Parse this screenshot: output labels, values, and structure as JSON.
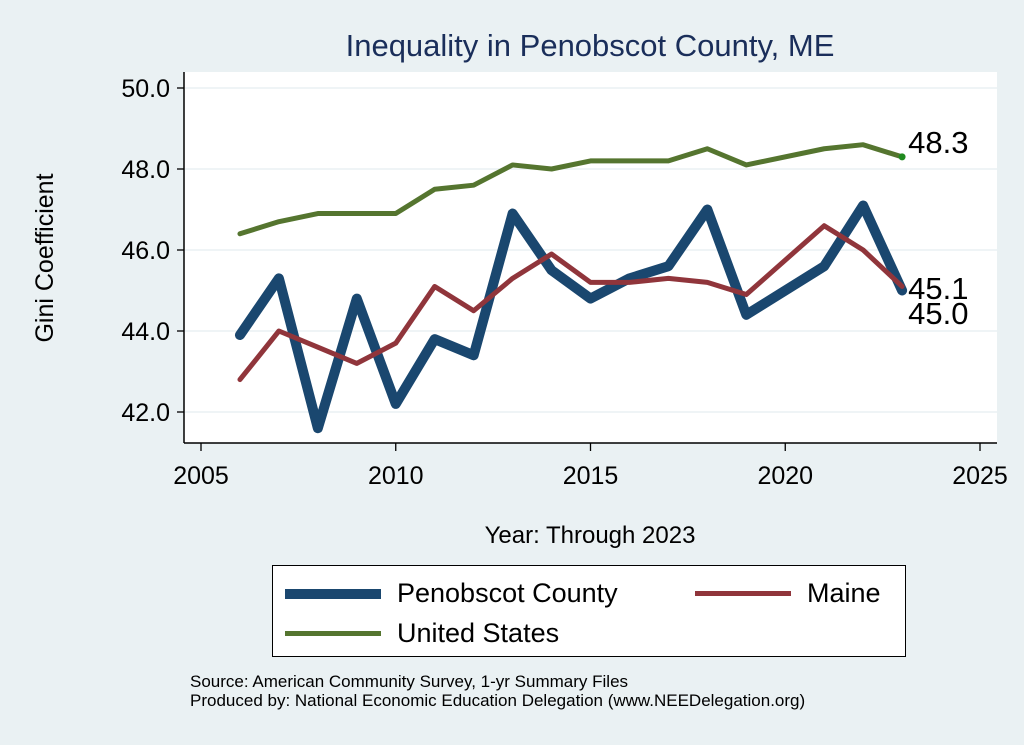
{
  "chart_data": {
    "type": "line",
    "title": "Inequality in Penobscot County, ME",
    "xlabel": "Year: Through 2023",
    "ylabel": "Gini Coefficient",
    "xlim": [
      2005,
      2025
    ],
    "ylim": [
      41.6,
      50.4
    ],
    "x_ticks": [
      "2005",
      "2010",
      "2015",
      "2020",
      "2025"
    ],
    "x_tick_values": [
      2005,
      2010,
      2015,
      2020,
      2025
    ],
    "y_ticks": [
      "42.0",
      "44.0",
      "46.0",
      "48.0",
      "50.0"
    ],
    "y_tick_values": [
      42,
      44,
      46,
      48,
      50
    ],
    "grid": true,
    "legend_position": "bottom",
    "series": [
      {
        "name": "Penobscot County",
        "color": "#1a476f",
        "x": [
          2006,
          2007,
          2008,
          2009,
          2010,
          2011,
          2012,
          2013,
          2014,
          2015,
          2016,
          2017,
          2018,
          2019,
          2021,
          2022,
          2023
        ],
        "values": [
          43.9,
          45.3,
          41.6,
          44.8,
          42.2,
          43.8,
          43.4,
          46.9,
          45.5,
          44.8,
          45.3,
          45.6,
          47.0,
          44.4,
          45.6,
          47.1,
          45.0
        ],
        "end_label": "45.0"
      },
      {
        "name": "Maine",
        "color": "#90353b",
        "x": [
          2006,
          2007,
          2008,
          2009,
          2010,
          2011,
          2012,
          2013,
          2014,
          2015,
          2016,
          2017,
          2018,
          2019,
          2021,
          2022,
          2023
        ],
        "values": [
          42.8,
          44.0,
          43.6,
          43.2,
          43.7,
          45.1,
          44.5,
          45.3,
          45.9,
          45.2,
          45.2,
          45.3,
          45.2,
          44.9,
          46.6,
          46.0,
          45.1
        ],
        "end_label": "45.1"
      },
      {
        "name": "United States",
        "color": "#55752f",
        "x": [
          2006,
          2007,
          2008,
          2009,
          2010,
          2011,
          2012,
          2013,
          2014,
          2015,
          2016,
          2017,
          2018,
          2019,
          2021,
          2022,
          2023
        ],
        "values": [
          46.4,
          46.7,
          46.9,
          46.9,
          46.9,
          47.5,
          47.6,
          48.1,
          48.0,
          48.2,
          48.2,
          48.2,
          48.5,
          48.1,
          48.5,
          48.6,
          48.3
        ],
        "end_label": "48.3"
      }
    ],
    "legend": [
      "Penobscot County",
      "Maine",
      "United States"
    ],
    "source_lines": [
      "Source: American Community Survey, 1-yr Summary Files",
      "Produced by: National Economic Education Delegation (www.NEEDelegation.org)"
    ]
  }
}
